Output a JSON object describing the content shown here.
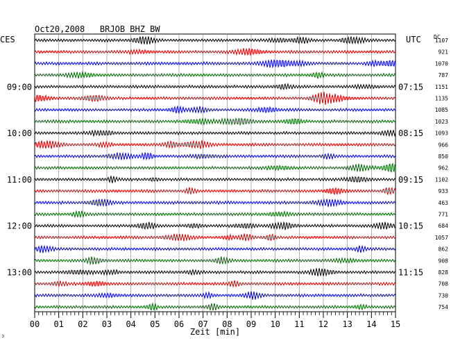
{
  "chart_data": {
    "type": "line",
    "title": "Oct20,2008   BRJOB BHZ BW",
    "left_zone_label": "CES",
    "right_zone_label": "UTC",
    "dc_label": "DC",
    "xlabel": "Zeit [min]",
    "x_ticks": [
      "00",
      "01",
      "02",
      "03",
      "04",
      "05",
      "06",
      "07",
      "08",
      "09",
      "10",
      "11",
      "12",
      "13",
      "14",
      "15"
    ],
    "xlim": [
      0,
      15
    ],
    "left_hour_labels": [
      {
        "trace": 4,
        "text": "09:00"
      },
      {
        "trace": 8,
        "text": "10:00"
      },
      {
        "trace": 12,
        "text": "11:00"
      },
      {
        "trace": 16,
        "text": "12:00"
      },
      {
        "trace": 20,
        "text": "13:00"
      }
    ],
    "right_hour_labels": [
      {
        "trace": 4,
        "text": "07:15"
      },
      {
        "trace": 8,
        "text": "08:15"
      },
      {
        "trace": 12,
        "text": "09:15"
      },
      {
        "trace": 16,
        "text": "10:15"
      },
      {
        "trace": 20,
        "text": "11:15"
      }
    ],
    "dc_values": [
      "1107",
      "921",
      "1070",
      "787",
      "1151",
      "1135",
      "1085",
      "1023",
      "1093",
      "966",
      "850",
      "962",
      "1102",
      "933",
      "463",
      "771",
      "684",
      "1057",
      "862",
      "908",
      "828",
      "708",
      "730",
      "754"
    ],
    "trace_colors": [
      "#000000",
      "#d00000",
      "#0000c8",
      "#006400"
    ],
    "grid": true,
    "footer_mark": "ↄ"
  }
}
